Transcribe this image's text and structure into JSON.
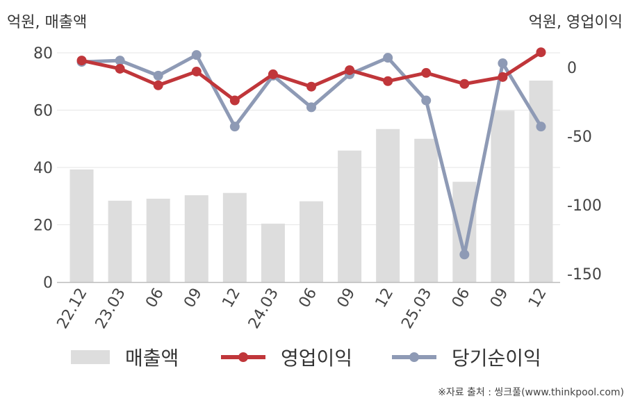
{
  "chart_data": {
    "type": "bar+line",
    "categories": [
      "22.12",
      "23.03",
      "06",
      "09",
      "12",
      "24.03",
      "06",
      "09",
      "12",
      "25.03",
      "06",
      "09",
      "12"
    ],
    "series": [
      {
        "name": "매출액",
        "type": "bar",
        "axis": "left",
        "color": "#dddddd",
        "values": [
          39.3,
          28.4,
          29.1,
          30.3,
          31.1,
          20.4,
          28.2,
          45.9,
          53.4,
          50.0,
          35.0,
          59.8,
          70.3
        ]
      },
      {
        "name": "영업이익",
        "type": "line",
        "axis": "right",
        "color": "#c0363a",
        "values": [
          5,
          -1,
          -13,
          -3,
          -24,
          -5,
          -14,
          -2,
          -10,
          -4,
          -12,
          -7,
          11
        ]
      },
      {
        "name": "당기순이익",
        "type": "line",
        "axis": "right",
        "color": "#8e9ab5",
        "values": [
          4,
          5,
          -6,
          9,
          -43,
          -6,
          -29,
          -5,
          7,
          -24,
          -136,
          3,
          -43
        ]
      }
    ],
    "y_left": {
      "unit": "억원, 매출액",
      "ticks": [
        0,
        20,
        40,
        60,
        80
      ],
      "range": [
        0,
        80
      ]
    },
    "y_right": {
      "unit": "억원, 영업이익",
      "ticks": [
        0,
        -50,
        -100,
        -150
      ],
      "range": [
        -155,
        10
      ]
    },
    "grid": true,
    "legend_position": "bottom"
  },
  "source_note": "※자료 출처 : 씽크풀(www.thinkpool.com)"
}
